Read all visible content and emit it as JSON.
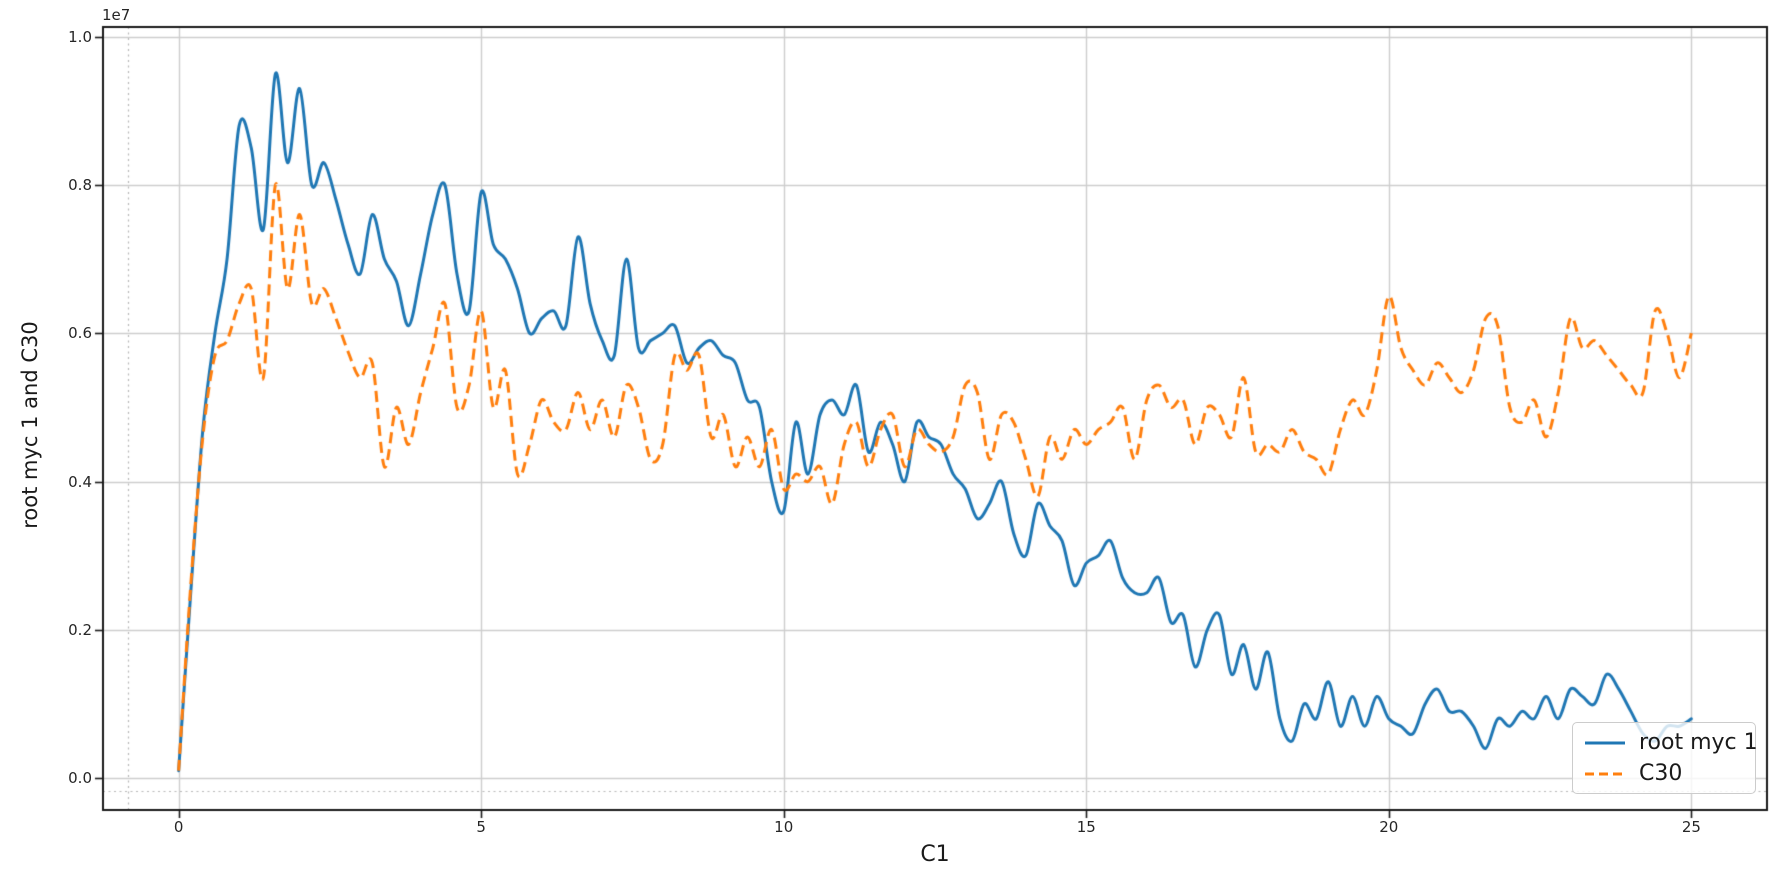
{
  "chart_data": {
    "type": "line",
    "title": "",
    "xlabel": "C1",
    "ylabel": "root myc 1 and C30",
    "y_offset_text": "1e7",
    "y_units_note": "series values are in units of 1e7",
    "xlim": [
      -1.25,
      26.25
    ],
    "ylim": [
      -0.043,
      1.013
    ],
    "grid": true,
    "x_ticks": {
      "values": [
        0,
        5,
        10,
        15,
        20,
        25
      ],
      "labels": [
        "0",
        "5",
        "10",
        "15",
        "20",
        "25"
      ]
    },
    "y_ticks": {
      "values": [
        0.0,
        0.2,
        0.4,
        0.6,
        0.8,
        1.0
      ],
      "labels": [
        "0.0",
        "0.2",
        "0.4",
        "0.6",
        "0.8",
        "1.0"
      ]
    },
    "reference_lines": {
      "dotted_vline_x": -0.83,
      "dotted_hline_y": -0.018
    },
    "legend": {
      "location": "lower right"
    },
    "style": {
      "background": "#ffffff",
      "grid_color": "#cdcdcd",
      "spine_color": "#1a1a1a",
      "text_color": "#262626",
      "dotted_line_color": "#b8b8b8"
    },
    "x": [
      0,
      0.2,
      0.4,
      0.6,
      0.8,
      1,
      1.2,
      1.4,
      1.6,
      1.8,
      2,
      2.2,
      2.4,
      2.6,
      2.8,
      3,
      3.2,
      3.4,
      3.6,
      3.8,
      4,
      4.2,
      4.4,
      4.6,
      4.8,
      5,
      5.2,
      5.4,
      5.6,
      5.8,
      6,
      6.2,
      6.4,
      6.6,
      6.8,
      7,
      7.2,
      7.4,
      7.6,
      7.8,
      8,
      8.2,
      8.4,
      8.6,
      8.8,
      9,
      9.2,
      9.4,
      9.6,
      9.8,
      10,
      10.2,
      10.4,
      10.6,
      10.8,
      11,
      11.2,
      11.4,
      11.6,
      11.8,
      12,
      12.2,
      12.4,
      12.6,
      12.8,
      13,
      13.2,
      13.4,
      13.6,
      13.8,
      14,
      14.2,
      14.4,
      14.6,
      14.8,
      15,
      15.2,
      15.4,
      15.6,
      15.8,
      16,
      16.2,
      16.4,
      16.6,
      16.8,
      17,
      17.2,
      17.4,
      17.6,
      17.8,
      18,
      18.2,
      18.4,
      18.6,
      18.8,
      19,
      19.2,
      19.4,
      19.6,
      19.8,
      20,
      20.2,
      20.4,
      20.6,
      20.8,
      21,
      21.2,
      21.4,
      21.6,
      21.8,
      22,
      22.2,
      22.4,
      22.6,
      22.8,
      23,
      23.2,
      23.4,
      23.6,
      23.8,
      24,
      24.2,
      24.4,
      24.6,
      24.8,
      25
    ],
    "series": [
      {
        "name": "root myc 1",
        "color": "#1f77b4",
        "line_style": "solid",
        "values": [
          0.01,
          0.25,
          0.47,
          0.6,
          0.7,
          0.88,
          0.85,
          0.74,
          0.95,
          0.83,
          0.93,
          0.8,
          0.83,
          0.78,
          0.72,
          0.68,
          0.76,
          0.7,
          0.67,
          0.61,
          0.68,
          0.76,
          0.8,
          0.68,
          0.63,
          0.79,
          0.72,
          0.7,
          0.66,
          0.6,
          0.62,
          0.63,
          0.61,
          0.73,
          0.64,
          0.59,
          0.57,
          0.7,
          0.58,
          0.59,
          0.6,
          0.61,
          0.56,
          0.58,
          0.59,
          0.57,
          0.56,
          0.51,
          0.5,
          0.4,
          0.36,
          0.48,
          0.41,
          0.49,
          0.51,
          0.49,
          0.53,
          0.44,
          0.48,
          0.45,
          0.4,
          0.48,
          0.46,
          0.45,
          0.41,
          0.39,
          0.35,
          0.37,
          0.4,
          0.33,
          0.3,
          0.37,
          0.34,
          0.32,
          0.26,
          0.29,
          0.3,
          0.32,
          0.27,
          0.25,
          0.25,
          0.27,
          0.21,
          0.22,
          0.15,
          0.2,
          0.22,
          0.14,
          0.18,
          0.12,
          0.17,
          0.08,
          0.05,
          0.1,
          0.08,
          0.13,
          0.07,
          0.11,
          0.07,
          0.11,
          0.08,
          0.07,
          0.06,
          0.1,
          0.12,
          0.09,
          0.09,
          0.07,
          0.04,
          0.08,
          0.07,
          0.09,
          0.08,
          0.11,
          0.08,
          0.12,
          0.11,
          0.1,
          0.14,
          0.12,
          0.09,
          0.06,
          0.05,
          0.07,
          0.07,
          0.08
        ]
      },
      {
        "name": "C30",
        "color": "#ff7f0e",
        "line_style": "dashed",
        "values": [
          0.01,
          0.26,
          0.46,
          0.57,
          0.59,
          0.64,
          0.66,
          0.54,
          0.8,
          0.66,
          0.76,
          0.64,
          0.66,
          0.62,
          0.575,
          0.54,
          0.56,
          0.42,
          0.5,
          0.45,
          0.52,
          0.58,
          0.64,
          0.5,
          0.53,
          0.63,
          0.5,
          0.55,
          0.41,
          0.45,
          0.51,
          0.48,
          0.47,
          0.52,
          0.47,
          0.51,
          0.46,
          0.53,
          0.5,
          0.43,
          0.45,
          0.57,
          0.55,
          0.57,
          0.46,
          0.49,
          0.42,
          0.46,
          0.42,
          0.47,
          0.39,
          0.41,
          0.4,
          0.42,
          0.37,
          0.45,
          0.48,
          0.42,
          0.47,
          0.49,
          0.42,
          0.47,
          0.45,
          0.44,
          0.46,
          0.53,
          0.52,
          0.43,
          0.49,
          0.48,
          0.43,
          0.38,
          0.46,
          0.43,
          0.47,
          0.45,
          0.47,
          0.48,
          0.5,
          0.43,
          0.51,
          0.53,
          0.5,
          0.51,
          0.45,
          0.5,
          0.49,
          0.46,
          0.54,
          0.44,
          0.45,
          0.44,
          0.47,
          0.44,
          0.43,
          0.41,
          0.47,
          0.51,
          0.49,
          0.55,
          0.65,
          0.58,
          0.55,
          0.53,
          0.56,
          0.54,
          0.52,
          0.55,
          0.62,
          0.61,
          0.5,
          0.48,
          0.51,
          0.46,
          0.52,
          0.62,
          0.58,
          0.59,
          0.57,
          0.55,
          0.53,
          0.52,
          0.63,
          0.6,
          0.54,
          0.6
        ]
      }
    ]
  }
}
